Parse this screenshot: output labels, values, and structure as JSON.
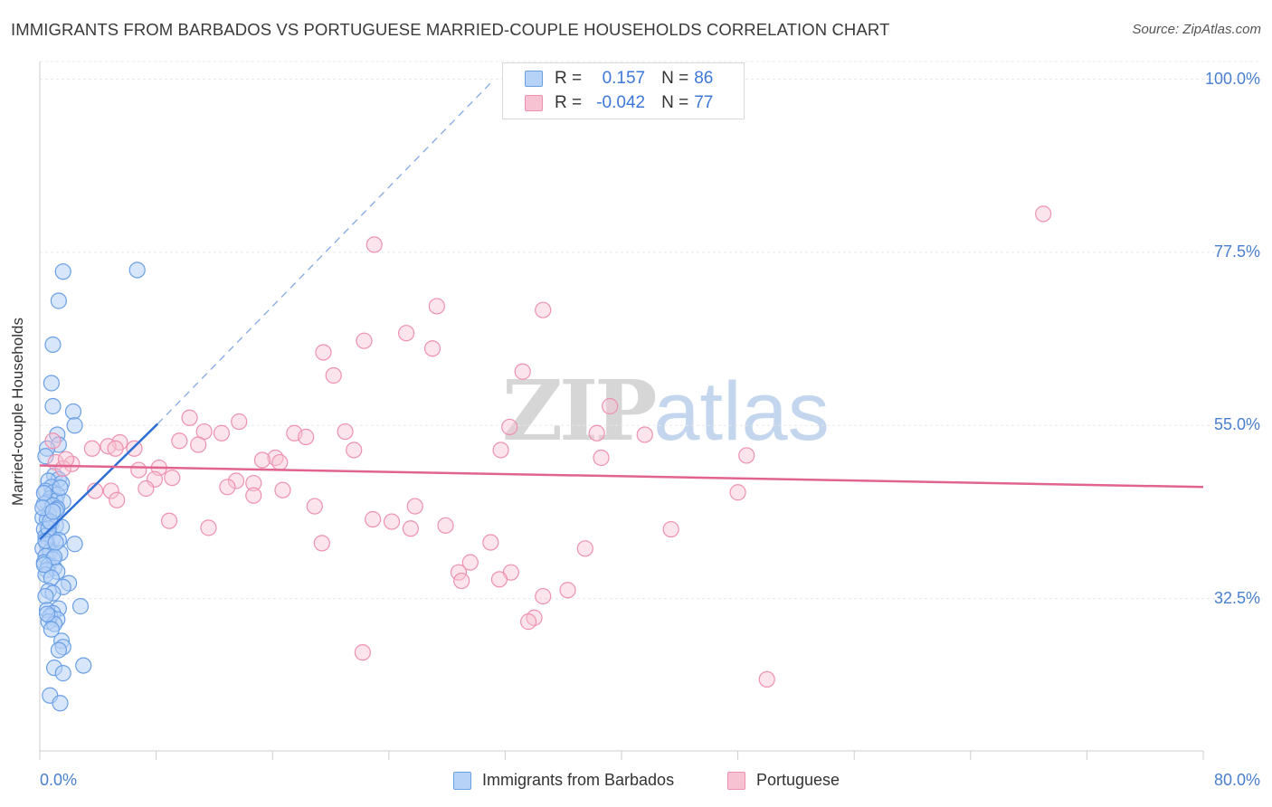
{
  "chart_data": {
    "type": "scatter",
    "title": "IMMIGRANTS FROM BARBADOS VS PORTUGUESE MARRIED-COUPLE HOUSEHOLDS CORRELATION CHART",
    "source": "Source: ZipAtlas.com",
    "xlabel": "",
    "ylabel": "Married-couple Households",
    "xlim": [
      0,
      80
    ],
    "ylim": [
      12.7,
      102.3
    ],
    "x_tick_labels": [
      "0.0%",
      "80.0%"
    ],
    "y_ticks": [
      32.5,
      55.0,
      77.5,
      100.0
    ],
    "y_tick_labels": [
      "32.5%",
      "55.0%",
      "77.5%",
      "100.0%"
    ],
    "grid": true,
    "watermark": {
      "part1": "ZIP",
      "part2": "atlas"
    },
    "stats": [
      {
        "r_label": "R =",
        "r_value": "0.157",
        "n_label": "N =",
        "n_value": "86"
      },
      {
        "r_label": "R =",
        "r_value": "-0.042",
        "n_label": "N =",
        "n_value": "77"
      }
    ],
    "legend": [
      "Immigrants from Barbados",
      "Portuguese"
    ],
    "colors": {
      "barbados_fill": "#b6d2f6",
      "barbados_stroke": "#6a9fe6",
      "barbados_line": "#2e6fd6",
      "portuguese_fill": "#f7c3d3",
      "portuguese_stroke": "#ee91b0",
      "portuguese_line": "#e0648f",
      "grid": "#e8e8e8",
      "axis": "#cccccc",
      "tick_text": "#4a7fcf"
    },
    "series": [
      {
        "name": "Immigrants from Barbados",
        "trend": {
          "x": [
            0.0,
            8.1
          ],
          "y": [
            40.2,
            55.2
          ]
        },
        "trend_extension": {
          "x": [
            8.1,
            31.0
          ],
          "y": [
            55.2,
            99.5
          ]
        },
        "points": [
          [
            1.6,
            75.0
          ],
          [
            6.7,
            75.2
          ],
          [
            1.3,
            71.2
          ],
          [
            0.9,
            65.5
          ],
          [
            0.8,
            60.5
          ],
          [
            0.9,
            57.5
          ],
          [
            2.3,
            56.8
          ],
          [
            2.4,
            55.0
          ],
          [
            1.2,
            53.8
          ],
          [
            1.3,
            52.5
          ],
          [
            0.5,
            52.0
          ],
          [
            0.4,
            51.0
          ],
          [
            1.0,
            48.5
          ],
          [
            1.3,
            48.0
          ],
          [
            0.6,
            47.8
          ],
          [
            1.5,
            47.5
          ],
          [
            0.8,
            47.0
          ],
          [
            0.4,
            46.5
          ],
          [
            0.9,
            46.3
          ],
          [
            1.2,
            46.0
          ],
          [
            0.7,
            45.5
          ],
          [
            1.1,
            45.2
          ],
          [
            1.6,
            45.1
          ],
          [
            0.5,
            45.0
          ],
          [
            0.3,
            44.8
          ],
          [
            0.9,
            44.6
          ],
          [
            1.2,
            44.2
          ],
          [
            0.6,
            43.5
          ],
          [
            0.2,
            43.0
          ],
          [
            0.5,
            42.8
          ],
          [
            0.8,
            42.2
          ],
          [
            1.1,
            42.0
          ],
          [
            1.5,
            41.8
          ],
          [
            0.3,
            41.5
          ],
          [
            0.6,
            41.0
          ],
          [
            0.4,
            40.6
          ],
          [
            0.9,
            40.3
          ],
          [
            1.3,
            40.1
          ],
          [
            2.4,
            39.6
          ],
          [
            0.5,
            39.5
          ],
          [
            0.2,
            39.0
          ],
          [
            0.7,
            38.6
          ],
          [
            1.4,
            38.4
          ],
          [
            0.4,
            38.0
          ],
          [
            0.9,
            37.6
          ],
          [
            0.3,
            37.2
          ],
          [
            0.6,
            36.8
          ],
          [
            1.0,
            36.5
          ],
          [
            0.5,
            36.2
          ],
          [
            1.2,
            36.0
          ],
          [
            0.4,
            35.6
          ],
          [
            0.8,
            35.2
          ],
          [
            2.0,
            34.5
          ],
          [
            1.6,
            34.0
          ],
          [
            0.6,
            33.5
          ],
          [
            0.9,
            33.2
          ],
          [
            0.4,
            32.8
          ],
          [
            2.8,
            31.5
          ],
          [
            1.3,
            31.2
          ],
          [
            0.5,
            31.0
          ],
          [
            0.9,
            30.6
          ],
          [
            0.7,
            30.2
          ],
          [
            1.2,
            29.8
          ],
          [
            0.6,
            29.5
          ],
          [
            1.0,
            29.2
          ],
          [
            0.8,
            28.5
          ],
          [
            1.5,
            27.0
          ],
          [
            1.6,
            26.2
          ],
          [
            1.3,
            25.8
          ],
          [
            3.0,
            23.8
          ],
          [
            1.0,
            23.5
          ],
          [
            1.6,
            22.8
          ],
          [
            0.7,
            19.9
          ],
          [
            1.4,
            18.9
          ],
          [
            1.1,
            44.0
          ],
          [
            0.3,
            46.2
          ],
          [
            0.6,
            41.6
          ],
          [
            1.0,
            37.9
          ],
          [
            0.2,
            44.3
          ],
          [
            0.7,
            42.5
          ],
          [
            1.4,
            46.9
          ],
          [
            0.4,
            40.0
          ],
          [
            0.9,
            43.8
          ],
          [
            0.3,
            36.9
          ],
          [
            1.1,
            39.8
          ],
          [
            0.5,
            30.5
          ]
        ]
      },
      {
        "name": "Portuguese",
        "trend": {
          "x": [
            0.0,
            80.0
          ],
          "y": [
            49.8,
            47.0
          ]
        },
        "points": [
          [
            69.0,
            82.5
          ],
          [
            23.0,
            78.5
          ],
          [
            27.3,
            70.5
          ],
          [
            34.6,
            70.0
          ],
          [
            22.3,
            66.0
          ],
          [
            25.2,
            67.0
          ],
          [
            27.0,
            65.0
          ],
          [
            19.5,
            64.5
          ],
          [
            33.2,
            62.0
          ],
          [
            20.2,
            61.5
          ],
          [
            39.2,
            57.5
          ],
          [
            10.3,
            56.0
          ],
          [
            13.7,
            55.5
          ],
          [
            11.3,
            54.2
          ],
          [
            21.0,
            54.2
          ],
          [
            17.5,
            54.0
          ],
          [
            12.5,
            54.0
          ],
          [
            18.3,
            53.5
          ],
          [
            32.3,
            54.8
          ],
          [
            38.3,
            54.0
          ],
          [
            41.6,
            53.8
          ],
          [
            9.6,
            53.0
          ],
          [
            10.9,
            52.5
          ],
          [
            5.5,
            52.8
          ],
          [
            4.7,
            52.3
          ],
          [
            3.6,
            52.0
          ],
          [
            21.6,
            51.8
          ],
          [
            31.7,
            51.8
          ],
          [
            6.5,
            52.0
          ],
          [
            5.2,
            52.0
          ],
          [
            16.2,
            50.8
          ],
          [
            38.6,
            50.8
          ],
          [
            48.6,
            51.1
          ],
          [
            15.3,
            50.5
          ],
          [
            16.5,
            50.2
          ],
          [
            1.1,
            50.2
          ],
          [
            8.2,
            49.5
          ],
          [
            2.2,
            50.0
          ],
          [
            6.8,
            49.2
          ],
          [
            1.6,
            49.4
          ],
          [
            7.9,
            48.0
          ],
          [
            9.1,
            48.2
          ],
          [
            13.5,
            47.8
          ],
          [
            14.7,
            47.5
          ],
          [
            12.9,
            47.0
          ],
          [
            3.8,
            46.5
          ],
          [
            7.3,
            46.8
          ],
          [
            4.9,
            46.5
          ],
          [
            16.7,
            46.6
          ],
          [
            14.7,
            45.9
          ],
          [
            48.0,
            46.3
          ],
          [
            5.3,
            45.3
          ],
          [
            18.9,
            44.5
          ],
          [
            25.8,
            44.5
          ],
          [
            22.9,
            42.8
          ],
          [
            24.2,
            42.5
          ],
          [
            27.9,
            42.0
          ],
          [
            8.9,
            42.6
          ],
          [
            11.6,
            41.7
          ],
          [
            25.5,
            41.6
          ],
          [
            43.4,
            41.5
          ],
          [
            31.0,
            39.8
          ],
          [
            19.4,
            39.7
          ],
          [
            37.5,
            39.0
          ],
          [
            29.6,
            37.2
          ],
          [
            28.8,
            35.9
          ],
          [
            32.4,
            35.9
          ],
          [
            29.0,
            34.8
          ],
          [
            31.6,
            35.0
          ],
          [
            36.3,
            33.6
          ],
          [
            34.6,
            32.8
          ],
          [
            34.0,
            30.0
          ],
          [
            33.6,
            29.5
          ],
          [
            22.2,
            25.5
          ],
          [
            50.0,
            22.0
          ],
          [
            1.8,
            50.6
          ],
          [
            0.9,
            53.0
          ]
        ]
      }
    ]
  }
}
